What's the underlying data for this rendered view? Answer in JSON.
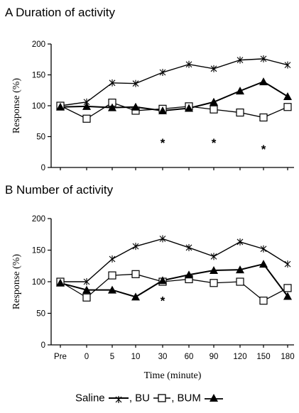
{
  "panels": [
    {
      "title": "A  Duration of activity",
      "ylabel": "Response (%)",
      "yticks": [
        "0",
        "50",
        "100",
        "150",
        "200"
      ]
    },
    {
      "title": "B  Number of activity",
      "ylabel": "Response (%)",
      "yticks": [
        "0",
        "50",
        "100",
        "150",
        "200"
      ]
    }
  ],
  "xlabel": "Time (minute)",
  "legend": [
    {
      "label": "Saline"
    },
    {
      "label": "BU"
    },
    {
      "label": "BUM"
    }
  ],
  "chart_data": [
    {
      "type": "line",
      "title": "A  Duration of activity",
      "xlabel": "",
      "ylabel": "Response (%)",
      "ylim": [
        0,
        200
      ],
      "categories": [
        "Pre",
        "0",
        "5",
        "10",
        "30",
        "60",
        "90",
        "120",
        "150",
        "180"
      ],
      "series": [
        {
          "name": "Saline",
          "marker": "asterisk",
          "values": [
            100,
            106,
            137,
            136,
            154,
            167,
            160,
            174,
            176,
            166
          ]
        },
        {
          "name": "BU",
          "marker": "open-square",
          "values": [
            100,
            79,
            105,
            92,
            95,
            99,
            94,
            89,
            81,
            98
          ]
        },
        {
          "name": "BUM",
          "marker": "filled-triangle",
          "values": [
            98,
            99,
            97,
            98,
            92,
            96,
            106,
            124,
            139,
            115
          ]
        }
      ],
      "annotations": [
        {
          "text": "*",
          "category": "30",
          "y": 40
        },
        {
          "text": "*",
          "category": "90",
          "y": 40
        },
        {
          "text": "*",
          "category": "150",
          "y": 30
        }
      ]
    },
    {
      "type": "line",
      "title": "B  Number of activity",
      "xlabel": "Time (minute)",
      "ylabel": "Response (%)",
      "ylim": [
        0,
        200
      ],
      "categories": [
        "Pre",
        "0",
        "5",
        "10",
        "30",
        "60",
        "90",
        "120",
        "150",
        "180"
      ],
      "series": [
        {
          "name": "Saline",
          "marker": "asterisk",
          "values": [
            100,
            100,
            136,
            156,
            168,
            154,
            140,
            163,
            152,
            128
          ]
        },
        {
          "name": "BU",
          "marker": "open-square",
          "values": [
            100,
            75,
            110,
            112,
            100,
            104,
            98,
            100,
            70,
            90
          ]
        },
        {
          "name": "BUM",
          "marker": "filled-triangle",
          "values": [
            98,
            87,
            87,
            76,
            102,
            111,
            118,
            119,
            128,
            77
          ]
        }
      ],
      "annotations": [
        {
          "text": "*",
          "category": "30",
          "y": 70
        }
      ]
    }
  ]
}
